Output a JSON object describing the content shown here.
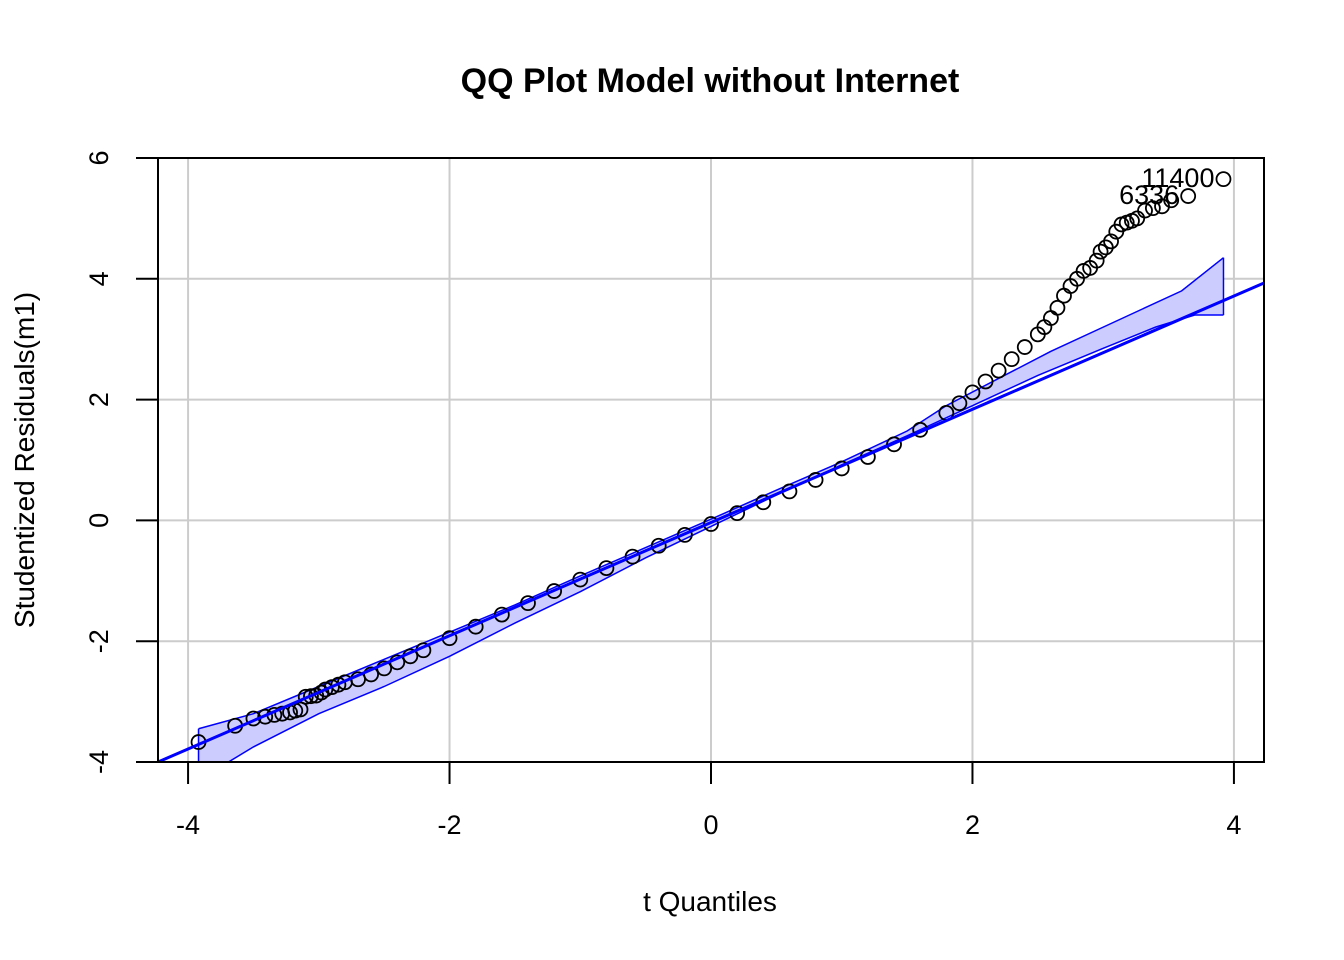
{
  "chart_data": {
    "type": "scatter",
    "title": "QQ Plot Model without Internet",
    "xlabel": "t Quantiles",
    "ylabel": "Studentized Residuals(m1)",
    "xlim": [
      -4.23,
      4.23
    ],
    "ylim": [
      -4.0,
      6.0
    ],
    "x_ticks": [
      -4,
      -2,
      0,
      2,
      4
    ],
    "y_ticks": [
      -4,
      -2,
      0,
      2,
      4,
      6
    ],
    "x_tick_labels": [
      "-4",
      "-2",
      "0",
      "2",
      "4"
    ],
    "y_tick_labels": [
      "-4",
      "-2",
      "0",
      "2",
      "4",
      "6"
    ],
    "grid": true,
    "point_color": "#000000",
    "line_color": "#0000ff",
    "band_fill": "#ccccff",
    "reference_line": {
      "x": [
        -4.23,
        4.23
      ],
      "y": [
        -4.0,
        3.93
      ]
    },
    "confidence_band": {
      "upper": [
        [
          -3.92,
          -3.45
        ],
        [
          -3.5,
          -3.2
        ],
        [
          -3.0,
          -2.75
        ],
        [
          -2.5,
          -2.3
        ],
        [
          -2.0,
          -1.85
        ],
        [
          -1.5,
          -1.4
        ],
        [
          -1.0,
          -0.92
        ],
        [
          -0.5,
          -0.45
        ],
        [
          0.0,
          0.02
        ],
        [
          0.5,
          0.5
        ],
        [
          1.0,
          0.97
        ],
        [
          1.5,
          1.48
        ],
        [
          1.8,
          1.9
        ],
        [
          2.2,
          2.35
        ],
        [
          2.6,
          2.8
        ],
        [
          3.0,
          3.2
        ],
        [
          3.3,
          3.5
        ],
        [
          3.6,
          3.8
        ],
        [
          3.92,
          4.35
        ]
      ],
      "lower": [
        [
          -3.92,
          -4.3
        ],
        [
          -3.5,
          -3.75
        ],
        [
          -3.0,
          -3.2
        ],
        [
          -2.5,
          -2.75
        ],
        [
          -2.0,
          -2.25
        ],
        [
          -1.5,
          -1.7
        ],
        [
          -1.0,
          -1.18
        ],
        [
          -0.5,
          -0.62
        ],
        [
          0.0,
          -0.1
        ],
        [
          0.5,
          0.42
        ],
        [
          1.0,
          0.92
        ],
        [
          1.5,
          1.4
        ],
        [
          2.0,
          1.9
        ],
        [
          2.5,
          2.4
        ],
        [
          3.0,
          2.85
        ],
        [
          3.4,
          3.2
        ],
        [
          3.7,
          3.4
        ],
        [
          3.92,
          3.4
        ]
      ]
    },
    "points": [
      [
        -3.92,
        -3.67
      ],
      [
        -3.64,
        -3.4
      ],
      [
        -3.5,
        -3.28
      ],
      [
        -3.41,
        -3.25
      ],
      [
        -3.34,
        -3.22
      ],
      [
        -3.28,
        -3.2
      ],
      [
        -3.22,
        -3.18
      ],
      [
        -3.18,
        -3.15
      ],
      [
        -3.14,
        -3.13
      ],
      [
        -3.1,
        -2.92
      ],
      [
        -3.06,
        -2.91
      ],
      [
        -3.02,
        -2.9
      ],
      [
        -2.98,
        -2.85
      ],
      [
        -2.95,
        -2.8
      ],
      [
        -2.9,
        -2.76
      ],
      [
        -2.85,
        -2.72
      ],
      [
        -2.8,
        -2.68
      ],
      [
        -2.7,
        -2.63
      ],
      [
        -2.6,
        -2.55
      ],
      [
        -2.5,
        -2.45
      ],
      [
        -2.4,
        -2.35
      ],
      [
        -2.3,
        -2.25
      ],
      [
        -2.2,
        -2.15
      ],
      [
        -2.0,
        -1.95
      ],
      [
        -1.8,
        -1.76
      ],
      [
        -1.6,
        -1.56
      ],
      [
        -1.4,
        -1.37
      ],
      [
        -1.2,
        -1.17
      ],
      [
        -1.0,
        -0.98
      ],
      [
        -0.8,
        -0.79
      ],
      [
        -0.6,
        -0.6
      ],
      [
        -0.4,
        -0.42
      ],
      [
        -0.2,
        -0.24
      ],
      [
        0.0,
        -0.06
      ],
      [
        0.2,
        0.12
      ],
      [
        0.4,
        0.3
      ],
      [
        0.6,
        0.48
      ],
      [
        0.8,
        0.67
      ],
      [
        1.0,
        0.86
      ],
      [
        1.2,
        1.05
      ],
      [
        1.4,
        1.26
      ],
      [
        1.6,
        1.5
      ],
      [
        1.8,
        1.78
      ],
      [
        1.9,
        1.94
      ],
      [
        2.0,
        2.12
      ],
      [
        2.1,
        2.3
      ],
      [
        2.2,
        2.48
      ],
      [
        2.3,
        2.67
      ],
      [
        2.4,
        2.87
      ],
      [
        2.5,
        3.08
      ],
      [
        2.55,
        3.2
      ],
      [
        2.6,
        3.35
      ],
      [
        2.65,
        3.52
      ],
      [
        2.7,
        3.72
      ],
      [
        2.75,
        3.88
      ],
      [
        2.8,
        4.0
      ],
      [
        2.85,
        4.13
      ],
      [
        2.9,
        4.18
      ],
      [
        2.95,
        4.3
      ],
      [
        2.98,
        4.45
      ],
      [
        3.02,
        4.52
      ],
      [
        3.06,
        4.62
      ],
      [
        3.1,
        4.78
      ],
      [
        3.14,
        4.9
      ],
      [
        3.18,
        4.93
      ],
      [
        3.22,
        4.96
      ],
      [
        3.26,
        5.0
      ],
      [
        3.32,
        5.13
      ],
      [
        3.38,
        5.17
      ],
      [
        3.45,
        5.2
      ],
      [
        3.52,
        5.3
      ],
      [
        3.65,
        5.37
      ],
      [
        3.92,
        5.65
      ]
    ],
    "labels": [
      {
        "text": "11400",
        "x": 3.92,
        "y": 5.65
      },
      {
        "text": "6336",
        "x": 3.65,
        "y": 5.37
      }
    ]
  }
}
